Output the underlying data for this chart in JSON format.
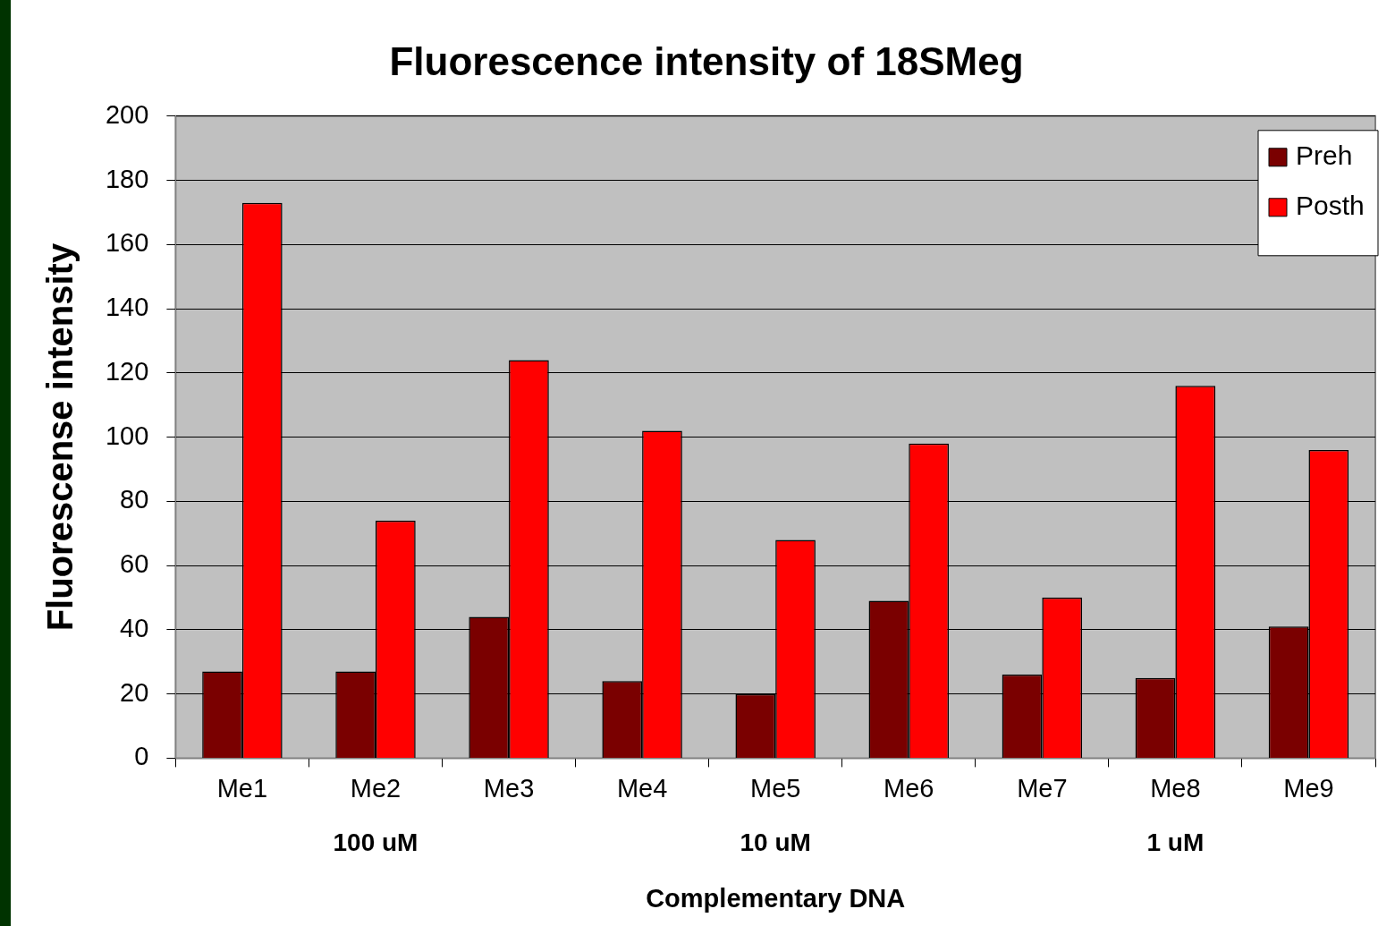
{
  "chart_data": {
    "type": "bar",
    "title": "Fluorescence intensity of 18SMeg",
    "xlabel": "Complementary DNA",
    "ylabel": "Fluorescense intensity",
    "categories": [
      "Me1",
      "Me2",
      "Me3",
      "Me4",
      "Me5",
      "Me6",
      "Me7",
      "Me8",
      "Me9"
    ],
    "series": [
      {
        "name": "Preh",
        "color": "#7a0000",
        "values": [
          27,
          27,
          44,
          24,
          20,
          49,
          26,
          25,
          41
        ]
      },
      {
        "name": "Posth",
        "color": "#ff0000",
        "values": [
          173,
          74,
          124,
          102,
          68,
          98,
          50,
          116,
          96
        ]
      }
    ],
    "ylim": [
      0,
      200
    ],
    "yticks": [
      0,
      20,
      40,
      60,
      80,
      100,
      120,
      140,
      160,
      180,
      200
    ],
    "grid": "y",
    "legend": "top right",
    "annotations": [
      "100 uM",
      "10 uM",
      "1 uM"
    ]
  }
}
